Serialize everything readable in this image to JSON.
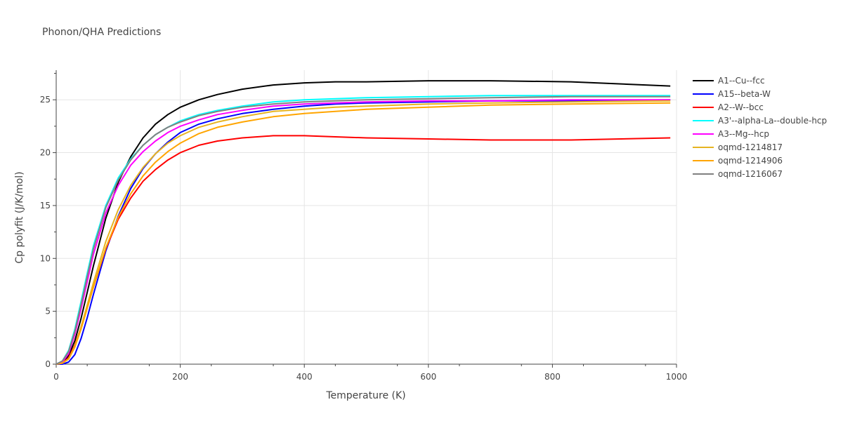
{
  "chart_data": {
    "type": "line",
    "title": "Phonon/QHA Predictions",
    "xlabel": "Temperature (K)",
    "ylabel": "Cp polyfit (J/K/mol)",
    "xlim": [
      0,
      1000
    ],
    "ylim": [
      0,
      27.8
    ],
    "xticks": [
      0,
      200,
      400,
      600,
      800,
      1000
    ],
    "yticks": [
      0,
      5,
      10,
      15,
      20,
      25
    ],
    "grid": true,
    "legend_position": "right",
    "series": [
      {
        "name": "A1--Cu--fcc",
        "color": "#000000",
        "x": [
          0,
          10,
          20,
          30,
          40,
          50,
          60,
          80,
          100,
          120,
          140,
          160,
          180,
          200,
          230,
          260,
          300,
          350,
          400,
          450,
          500,
          600,
          700,
          830,
          990
        ],
        "y": [
          0,
          0.2,
          0.8,
          2.2,
          4.3,
          6.8,
          9.3,
          13.8,
          17.2,
          19.6,
          21.4,
          22.7,
          23.6,
          24.3,
          25.0,
          25.5,
          26.0,
          26.4,
          26.6,
          26.7,
          26.7,
          26.8,
          26.8,
          26.7,
          26.3
        ]
      },
      {
        "name": "A15--beta-W",
        "color": "#0000ff",
        "x": [
          0,
          10,
          20,
          30,
          40,
          50,
          60,
          80,
          100,
          120,
          140,
          160,
          180,
          200,
          230,
          260,
          300,
          350,
          400,
          450,
          500,
          600,
          700,
          830,
          990
        ],
        "y": [
          0,
          0,
          0.2,
          0.9,
          2.4,
          4.4,
          6.6,
          10.7,
          14.0,
          16.6,
          18.5,
          19.9,
          21.0,
          21.9,
          22.7,
          23.2,
          23.7,
          24.1,
          24.4,
          24.6,
          24.7,
          24.8,
          24.9,
          24.9,
          25.0
        ]
      },
      {
        "name": "A2--W--bcc",
        "color": "#ff0000",
        "x": [
          0,
          10,
          20,
          30,
          40,
          50,
          60,
          80,
          100,
          120,
          140,
          160,
          180,
          200,
          230,
          260,
          300,
          350,
          400,
          450,
          500,
          600,
          700,
          830,
          990
        ],
        "y": [
          0,
          0.1,
          0.6,
          1.8,
          3.5,
          5.4,
          7.3,
          10.9,
          13.7,
          15.7,
          17.3,
          18.4,
          19.3,
          20.0,
          20.7,
          21.1,
          21.4,
          21.6,
          21.6,
          21.5,
          21.4,
          21.3,
          21.2,
          21.2,
          21.4
        ]
      },
      {
        "name": "A3'--alpha-La--double-hcp",
        "color": "#00ffff",
        "x": [
          0,
          10,
          20,
          30,
          40,
          50,
          60,
          80,
          100,
          120,
          140,
          160,
          180,
          200,
          230,
          260,
          300,
          350,
          400,
          450,
          500,
          600,
          700,
          830,
          990
        ],
        "y": [
          0,
          0.3,
          1.3,
          3.3,
          5.9,
          8.6,
          11.2,
          15.0,
          17.6,
          19.4,
          20.7,
          21.7,
          22.4,
          23.0,
          23.6,
          24.0,
          24.4,
          24.8,
          25.0,
          25.1,
          25.2,
          25.3,
          25.4,
          25.4,
          25.4
        ]
      },
      {
        "name": "A3--Mg--hcp",
        "color": "#ff00ff",
        "x": [
          0,
          10,
          20,
          30,
          40,
          50,
          60,
          80,
          100,
          120,
          140,
          160,
          180,
          200,
          230,
          260,
          300,
          350,
          400,
          450,
          500,
          600,
          700,
          830,
          990
        ],
        "y": [
          0,
          0.2,
          1.0,
          2.8,
          5.2,
          7.8,
          10.4,
          14.3,
          16.9,
          18.8,
          20.1,
          21.1,
          21.9,
          22.5,
          23.1,
          23.6,
          24.0,
          24.4,
          24.6,
          24.7,
          24.8,
          24.9,
          24.9,
          25.0,
          25.0
        ]
      },
      {
        "name": "oqmd-1214817",
        "color": "#e6b422",
        "x": [
          0,
          10,
          20,
          30,
          40,
          50,
          60,
          80,
          100,
          120,
          140,
          160,
          180,
          200,
          230,
          260,
          300,
          350,
          400,
          450,
          500,
          600,
          700,
          830,
          990
        ],
        "y": [
          0,
          0.1,
          0.5,
          1.7,
          3.5,
          5.6,
          7.7,
          11.6,
          14.6,
          16.9,
          18.6,
          19.9,
          20.9,
          21.6,
          22.4,
          22.9,
          23.4,
          23.9,
          24.1,
          24.3,
          24.4,
          24.6,
          24.7,
          24.8,
          24.9
        ]
      },
      {
        "name": "oqmd-1214906",
        "color": "#ffa500",
        "x": [
          0,
          10,
          20,
          30,
          40,
          50,
          60,
          80,
          100,
          120,
          140,
          160,
          180,
          200,
          230,
          260,
          300,
          350,
          400,
          450,
          500,
          600,
          700,
          830,
          990
        ],
        "y": [
          0,
          0.1,
          0.5,
          1.6,
          3.3,
          5.3,
          7.3,
          11.0,
          13.9,
          16.1,
          17.8,
          19.1,
          20.1,
          20.9,
          21.8,
          22.4,
          22.9,
          23.4,
          23.7,
          23.9,
          24.1,
          24.3,
          24.5,
          24.6,
          24.7
        ]
      },
      {
        "name": "oqmd-1216067",
        "color": "#808080",
        "x": [
          0,
          10,
          20,
          30,
          40,
          50,
          60,
          80,
          100,
          120,
          140,
          160,
          180,
          200,
          230,
          260,
          300,
          350,
          400,
          450,
          500,
          600,
          700,
          830,
          990
        ],
        "y": [
          0,
          0.3,
          1.2,
          3.1,
          5.6,
          8.3,
          10.9,
          14.8,
          17.4,
          19.3,
          20.7,
          21.7,
          22.4,
          22.9,
          23.5,
          23.9,
          24.3,
          24.6,
          24.8,
          24.9,
          25.0,
          25.1,
          25.2,
          25.3,
          25.3
        ]
      }
    ]
  }
}
